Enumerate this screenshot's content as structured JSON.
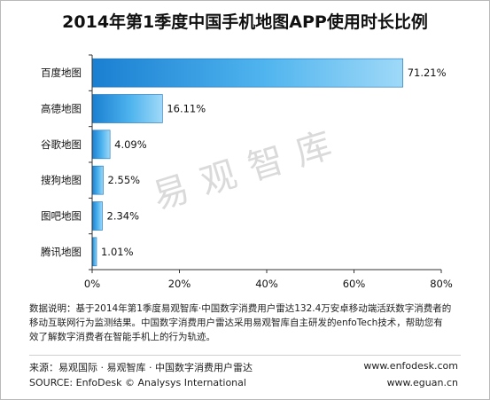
{
  "chart_data": {
    "type": "bar",
    "orientation": "horizontal",
    "title": "2014年第1季度中国手机地图APP使用时长比例",
    "categories": [
      "百度地图",
      "高德地图",
      "谷歌地图",
      "搜狗地图",
      "图吧地图",
      "腾讯地图"
    ],
    "values": [
      71.21,
      16.11,
      4.09,
      2.55,
      2.34,
      1.01
    ],
    "value_labels": [
      "71.21%",
      "16.11%",
      "4.09%",
      "2.55%",
      "2.34%",
      "1.01%"
    ],
    "xlim": [
      0,
      80
    ],
    "ticks": [
      0,
      20,
      40,
      60,
      80
    ],
    "tick_labels": [
      "0%",
      "20%",
      "40%",
      "60%",
      "80%"
    ],
    "grid": false,
    "bar_color_dark": "#1a7fd1",
    "bar_color_light": "#9fd9f8",
    "watermark": "易观智库"
  },
  "footer": {
    "note_line1": "数据说明：基于2014年第1季度易观智库·中国数字消费用户雷达132.4万安卓移动端活跃数字消费者的",
    "note_line2": "移动互联网行为监测结果。中国数字消费用户雷达采用易观智库自主研发的enfoTech技术，帮助您有",
    "note_line3": "效了解数字消费者在智能手机上的行为轨迹。",
    "source_cn": "来源：易观国际 · 易观智库 · 中国数字消费用户雷达",
    "source_en": "SOURCE: EnfoDesk © Analysys International",
    "url1": "www.enfodesk.com",
    "url2": "www.eguan.cn"
  }
}
